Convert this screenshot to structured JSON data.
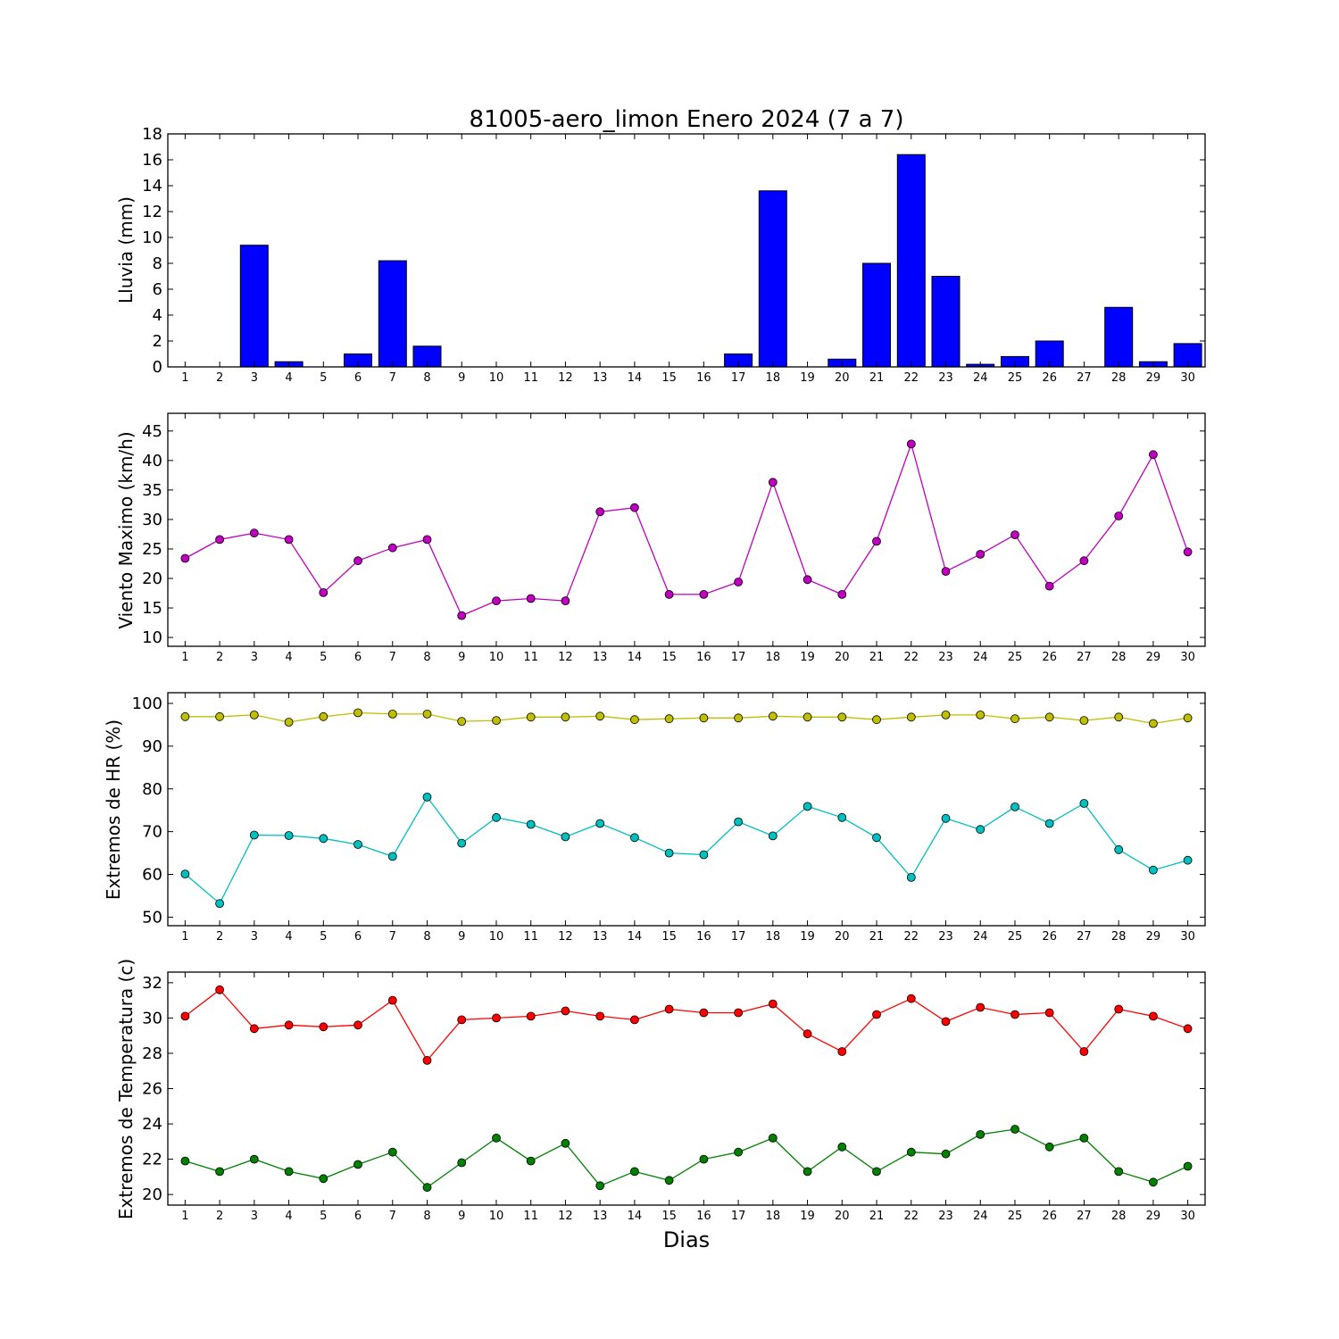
{
  "title": "81005-aero_limon Enero 2024  (7 a 7)",
  "xlabel": "Dias",
  "chart_data": [
    {
      "type": "bar",
      "ylabel": "Lluvia (mm)",
      "x": [
        1,
        2,
        3,
        4,
        5,
        6,
        7,
        8,
        9,
        10,
        11,
        12,
        13,
        14,
        15,
        16,
        17,
        18,
        19,
        20,
        21,
        22,
        23,
        24,
        25,
        26,
        27,
        28,
        29,
        30
      ],
      "ylim": [
        0,
        18
      ],
      "yticks": [
        0,
        2,
        4,
        6,
        8,
        10,
        12,
        14,
        16,
        18
      ],
      "series": [
        {
          "color": "#0000ff",
          "values": [
            0,
            0,
            9.4,
            0.4,
            0,
            1.0,
            8.2,
            1.6,
            0,
            0,
            0,
            0,
            0,
            0,
            0,
            0,
            1.0,
            13.6,
            0,
            0.6,
            8.0,
            16.4,
            7.0,
            0.2,
            0.8,
            2.0,
            0,
            4.6,
            0.4,
            1.8
          ]
        }
      ]
    },
    {
      "type": "line",
      "ylabel": "Viento Maximo (km/h)",
      "x": [
        1,
        2,
        3,
        4,
        5,
        6,
        7,
        8,
        9,
        10,
        11,
        12,
        13,
        14,
        15,
        16,
        17,
        18,
        19,
        20,
        21,
        22,
        23,
        24,
        25,
        26,
        27,
        28,
        29,
        30
      ],
      "ylim": [
        8.5,
        48
      ],
      "yticks": [
        10,
        15,
        20,
        25,
        30,
        35,
        40,
        45
      ],
      "series": [
        {
          "color": "#bf00bf",
          "values": [
            23.4,
            26.6,
            27.7,
            26.6,
            17.6,
            23.0,
            25.2,
            26.6,
            13.7,
            16.2,
            16.6,
            16.2,
            31.3,
            32.0,
            17.3,
            17.3,
            19.4,
            36.3,
            19.8,
            17.3,
            26.3,
            42.8,
            21.2,
            24.1,
            27.4,
            18.7,
            23.0,
            30.6,
            41.0,
            24.5
          ]
        }
      ]
    },
    {
      "type": "line",
      "ylabel": "Extremos de HR (%)",
      "x": [
        1,
        2,
        3,
        4,
        5,
        6,
        7,
        8,
        9,
        10,
        11,
        12,
        13,
        14,
        15,
        16,
        17,
        18,
        19,
        20,
        21,
        22,
        23,
        24,
        25,
        26,
        27,
        28,
        29,
        30
      ],
      "ylim": [
        48,
        102.5
      ],
      "yticks": [
        50,
        60,
        70,
        80,
        90,
        100
      ],
      "series": [
        {
          "color": "#bfbf00",
          "values": [
            96.9,
            96.9,
            97.3,
            95.6,
            96.9,
            97.8,
            97.5,
            97.5,
            95.8,
            96.0,
            96.8,
            96.8,
            97.0,
            96.2,
            96.4,
            96.6,
            96.6,
            97.0,
            96.8,
            96.8,
            96.2,
            96.8,
            97.3,
            97.3,
            96.4,
            96.8,
            96.0,
            96.8,
            95.3,
            96.6
          ]
        },
        {
          "color": "#00bfbf",
          "values": [
            60.1,
            53.2,
            69.2,
            69.1,
            68.4,
            67.0,
            64.2,
            78.1,
            67.3,
            73.3,
            71.7,
            68.8,
            71.9,
            68.6,
            65.0,
            64.6,
            72.3,
            69.0,
            75.9,
            73.3,
            68.6,
            59.3,
            73.1,
            70.5,
            75.8,
            71.9,
            76.6,
            65.8,
            61.0,
            63.3
          ]
        }
      ]
    },
    {
      "type": "line",
      "ylabel": "Extremos de Temperatura (c)",
      "x": [
        1,
        2,
        3,
        4,
        5,
        6,
        7,
        8,
        9,
        10,
        11,
        12,
        13,
        14,
        15,
        16,
        17,
        18,
        19,
        20,
        21,
        22,
        23,
        24,
        25,
        26,
        27,
        28,
        29,
        30
      ],
      "ylim": [
        19.4,
        32.6
      ],
      "yticks": [
        20,
        22,
        24,
        26,
        28,
        30,
        32
      ],
      "series": [
        {
          "color": "#ff0000",
          "values": [
            30.1,
            31.6,
            29.4,
            29.6,
            29.5,
            29.6,
            31.0,
            27.6,
            29.9,
            30.0,
            30.1,
            30.4,
            30.1,
            29.9,
            30.5,
            30.3,
            30.3,
            30.8,
            29.1,
            28.1,
            30.2,
            31.1,
            29.8,
            30.6,
            30.2,
            30.3,
            28.1,
            30.5,
            30.1,
            29.4
          ]
        },
        {
          "color": "#008000",
          "values": [
            21.9,
            21.3,
            22.0,
            21.3,
            20.9,
            21.7,
            22.4,
            20.4,
            21.8,
            23.2,
            21.9,
            22.9,
            20.5,
            21.3,
            20.8,
            22.0,
            22.4,
            23.2,
            21.3,
            22.7,
            21.3,
            22.4,
            22.3,
            23.4,
            23.7,
            22.7,
            23.2,
            21.3,
            20.7,
            21.6
          ]
        }
      ]
    }
  ]
}
